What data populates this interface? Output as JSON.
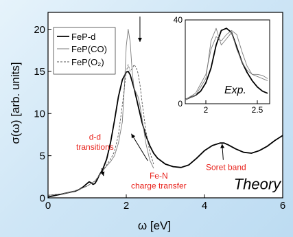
{
  "chart_data": [
    {
      "type": "line",
      "title": "",
      "xlabel": "ω [eV]",
      "ylabel": "σ(ω) [arb. units]",
      "xlim": [
        0,
        6
      ],
      "ylim": [
        0,
        22
      ],
      "x_ticks": [
        "0",
        "2",
        "4",
        "6"
      ],
      "y_ticks": [
        "0",
        "5",
        "10",
        "15",
        "20"
      ],
      "grid": false,
      "legend_position": "top-left",
      "series": [
        {
          "name": "FeP-d",
          "style": "solid-thick",
          "x": [
            0.0,
            0.1,
            0.2,
            0.3,
            0.4,
            0.5,
            0.6,
            0.7,
            0.8,
            0.9,
            1.0,
            1.05,
            1.1,
            1.15,
            1.2,
            1.25,
            1.3,
            1.4,
            1.5,
            1.6,
            1.7,
            1.8,
            1.9,
            2.0,
            2.05,
            2.1,
            2.2,
            2.3,
            2.4,
            2.5,
            2.6,
            2.7,
            2.8,
            3.0,
            3.2,
            3.4,
            3.6,
            3.8,
            4.0,
            4.2,
            4.4,
            4.5,
            4.6,
            4.8,
            5.0,
            5.2,
            5.4,
            5.6,
            5.8,
            6.0
          ],
          "y": [
            0.1,
            0.2,
            0.3,
            0.4,
            0.5,
            0.6,
            0.7,
            0.8,
            1.0,
            1.3,
            1.7,
            1.9,
            1.8,
            1.6,
            1.7,
            2.1,
            2.6,
            3.4,
            4.6,
            6.6,
            9.2,
            12.0,
            14.0,
            14.9,
            15.0,
            14.6,
            13.0,
            11.0,
            9.0,
            7.4,
            6.2,
            5.3,
            4.7,
            4.0,
            3.7,
            3.6,
            3.9,
            4.7,
            5.6,
            6.2,
            6.5,
            6.5,
            6.3,
            5.8,
            5.4,
            5.3,
            5.6,
            6.1,
            6.8,
            7.4
          ]
        },
        {
          "name": "FeP(CO)",
          "style": "solid-thin",
          "x": [
            0.0,
            0.2,
            0.4,
            0.6,
            0.8,
            1.0,
            1.1,
            1.2,
            1.3,
            1.4,
            1.5,
            1.6,
            1.7,
            1.8,
            1.9,
            1.95,
            2.0,
            2.05,
            2.1,
            2.15,
            2.2,
            2.25,
            2.3,
            2.35,
            2.4,
            2.5,
            2.6,
            2.7
          ],
          "y": [
            0.3,
            0.4,
            0.5,
            0.7,
            1.0,
            1.4,
            1.7,
            2.0,
            2.6,
            3.2,
            3.8,
            4.3,
            5.0,
            6.5,
            9.0,
            13.0,
            18.0,
            20.0,
            18.5,
            15.0,
            13.0,
            12.5,
            12.0,
            11.0,
            9.5,
            6.5,
            4.5,
            3.5
          ]
        },
        {
          "name": "FeP(O₂)",
          "style": "dashed",
          "x": [
            0.0,
            0.2,
            0.4,
            0.6,
            0.8,
            1.0,
            1.1,
            1.2,
            1.3,
            1.4,
            1.5,
            1.6,
            1.7,
            1.8,
            1.9,
            2.0,
            2.05,
            2.1,
            2.15,
            2.2,
            2.25,
            2.3,
            2.35,
            2.4,
            2.5,
            2.6,
            2.7
          ],
          "y": [
            0.3,
            0.4,
            0.5,
            0.7,
            1.0,
            1.4,
            1.7,
            2.0,
            2.6,
            3.2,
            3.9,
            4.6,
            5.5,
            7.5,
            11.0,
            15.0,
            15.8,
            15.0,
            15.3,
            15.8,
            15.5,
            14.8,
            13.5,
            11.5,
            8.0,
            5.5,
            4.0
          ]
        }
      ],
      "annotations": [
        {
          "text": "d-d",
          "x": 1.2,
          "y": 6.9
        },
        {
          "text": "transitions",
          "x": 1.2,
          "y": 5.7
        },
        {
          "text": "Fe-N",
          "x": 2.83,
          "y": 2.3
        },
        {
          "text": "charge transfer",
          "x": 2.83,
          "y": 1.1
        },
        {
          "text": "Soret band",
          "x": 4.55,
          "y": 3.3
        },
        {
          "text": "Theory",
          "x": 5.35,
          "y": 1.0
        }
      ],
      "arrows": [
        {
          "from": [
            1.37,
            3.5
          ],
          "to": [
            1.42,
            2.6
          ]
        },
        {
          "from": [
            2.35,
            21.5
          ],
          "to": [
            2.35,
            18.5
          ]
        },
        {
          "from": [
            2.55,
            4.4
          ],
          "to": [
            2.13,
            7.6
          ]
        },
        {
          "from": [
            4.48,
            4.5
          ],
          "to": [
            4.45,
            6.4
          ]
        }
      ],
      "colors": {
        "annotation": "#e8201a",
        "axis": "#000000",
        "theory_text": "#000000"
      }
    },
    {
      "type": "line",
      "title": "",
      "xlabel": "",
      "ylabel": "",
      "xlim": [
        1.8,
        2.62
      ],
      "ylim": [
        0,
        40
      ],
      "x_ticks": [
        "2",
        "2.5"
      ],
      "y_ticks": [
        "0",
        "40"
      ],
      "annotation": "Exp.",
      "series": [
        {
          "name": "thick",
          "style": "solid-thick",
          "x": [
            1.8,
            1.85,
            1.9,
            1.95,
            2.0,
            2.05,
            2.1,
            2.15,
            2.2,
            2.25,
            2.3,
            2.35,
            2.4,
            2.45,
            2.5,
            2.55,
            2.6
          ],
          "y": [
            2.0,
            3.0,
            4.0,
            6.0,
            10.0,
            17.0,
            28.0,
            35.0,
            36.0,
            34.0,
            27.0,
            20.0,
            15.0,
            11.0,
            8.0,
            6.0,
            5.0
          ]
        },
        {
          "name": "thin-a",
          "style": "solid-thin",
          "x": [
            1.8,
            1.9,
            2.0,
            2.05,
            2.1,
            2.15,
            2.2,
            2.25,
            2.3,
            2.35,
            2.4,
            2.45,
            2.5,
            2.55,
            2.6
          ],
          "y": [
            2.0,
            4.0,
            12.0,
            30.0,
            36.0,
            28.0,
            31.0,
            34.0,
            26.0,
            20.0,
            16.0,
            14.0,
            14.0,
            13.5,
            12.0
          ]
        },
        {
          "name": "thin-b",
          "style": "solid-thin",
          "x": [
            1.8,
            1.9,
            2.0,
            2.05,
            2.1,
            2.15,
            2.2,
            2.25,
            2.3,
            2.35,
            2.4,
            2.45,
            2.5,
            2.55,
            2.6
          ],
          "y": [
            2.0,
            5.0,
            14.0,
            26.0,
            32.0,
            30.0,
            33.0,
            35.0,
            33.0,
            25.0,
            18.0,
            14.0,
            13.0,
            12.0,
            11.0
          ]
        }
      ]
    }
  ]
}
